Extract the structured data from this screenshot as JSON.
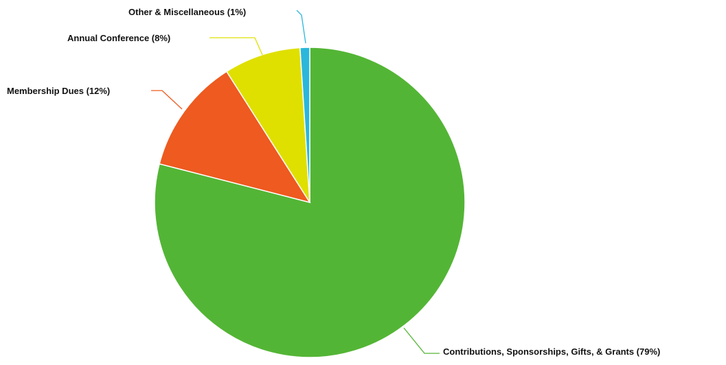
{
  "chart_data": {
    "type": "pie",
    "title": "",
    "legend": "none",
    "start_angle_deg": 0,
    "direction": "clockwise",
    "slices": [
      {
        "name": "Contributions, Sponsorships, Gifts, & Grants",
        "value": 79,
        "label": "Contributions, Sponsorships, Gifts, & Grants (79%)",
        "color": "#53b535"
      },
      {
        "name": "Membership Dues",
        "value": 12,
        "label": "Membership Dues (12%)",
        "color": "#ee5a1f"
      },
      {
        "name": "Annual Conference",
        "value": 8,
        "label": "Annual Conference (8%)",
        "color": "#dfe000"
      },
      {
        "name": "Other & Miscellaneous",
        "value": 1,
        "label": "Other & Miscellaneous (1%)",
        "color": "#2ab7db"
      }
    ]
  }
}
